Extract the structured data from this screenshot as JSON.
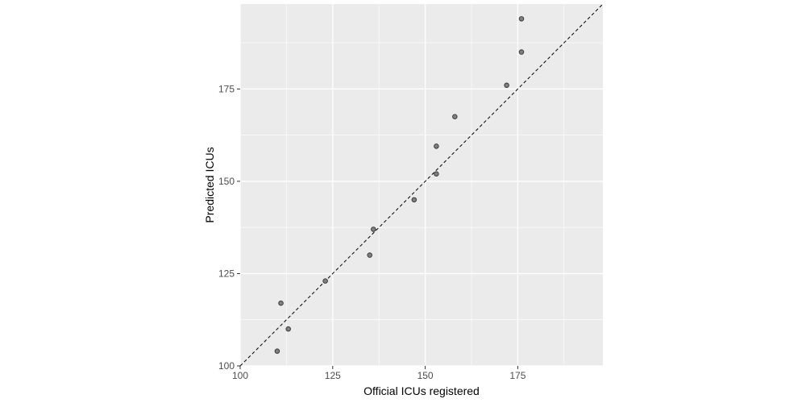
{
  "chart_data": {
    "type": "scatter",
    "title": "",
    "xlabel": "Official ICUs registered",
    "ylabel": "Predicted ICUs",
    "xlim": [
      100,
      198
    ],
    "ylim": [
      100,
      198
    ],
    "x_ticks": [
      100,
      125,
      150,
      175
    ],
    "y_ticks": [
      100,
      125,
      150,
      175
    ],
    "x_tick_labels": [
      "100",
      "125",
      "150",
      "175"
    ],
    "y_tick_labels": [
      "100",
      "125",
      "150",
      "175"
    ],
    "grid": true,
    "reference_line": {
      "slope": 1,
      "intercept": 0,
      "style": "dashed"
    },
    "points": [
      {
        "x": 110,
        "y": 104
      },
      {
        "x": 111,
        "y": 117
      },
      {
        "x": 113,
        "y": 110
      },
      {
        "x": 123,
        "y": 123
      },
      {
        "x": 135,
        "y": 130
      },
      {
        "x": 136,
        "y": 137
      },
      {
        "x": 147,
        "y": 145
      },
      {
        "x": 153,
        "y": 159.5
      },
      {
        "x": 153,
        "y": 152
      },
      {
        "x": 158,
        "y": 167.5
      },
      {
        "x": 172,
        "y": 176
      },
      {
        "x": 176,
        "y": 194
      },
      {
        "x": 176,
        "y": 185
      }
    ],
    "colors": {
      "panel": "#ebebeb",
      "grid_major": "#ffffff",
      "point_fill": "#7f7f7f",
      "point_stroke": "#333333",
      "reference_line": "#000000",
      "tick_mark": "#333333",
      "tick_label": "#4d4d4d"
    }
  }
}
